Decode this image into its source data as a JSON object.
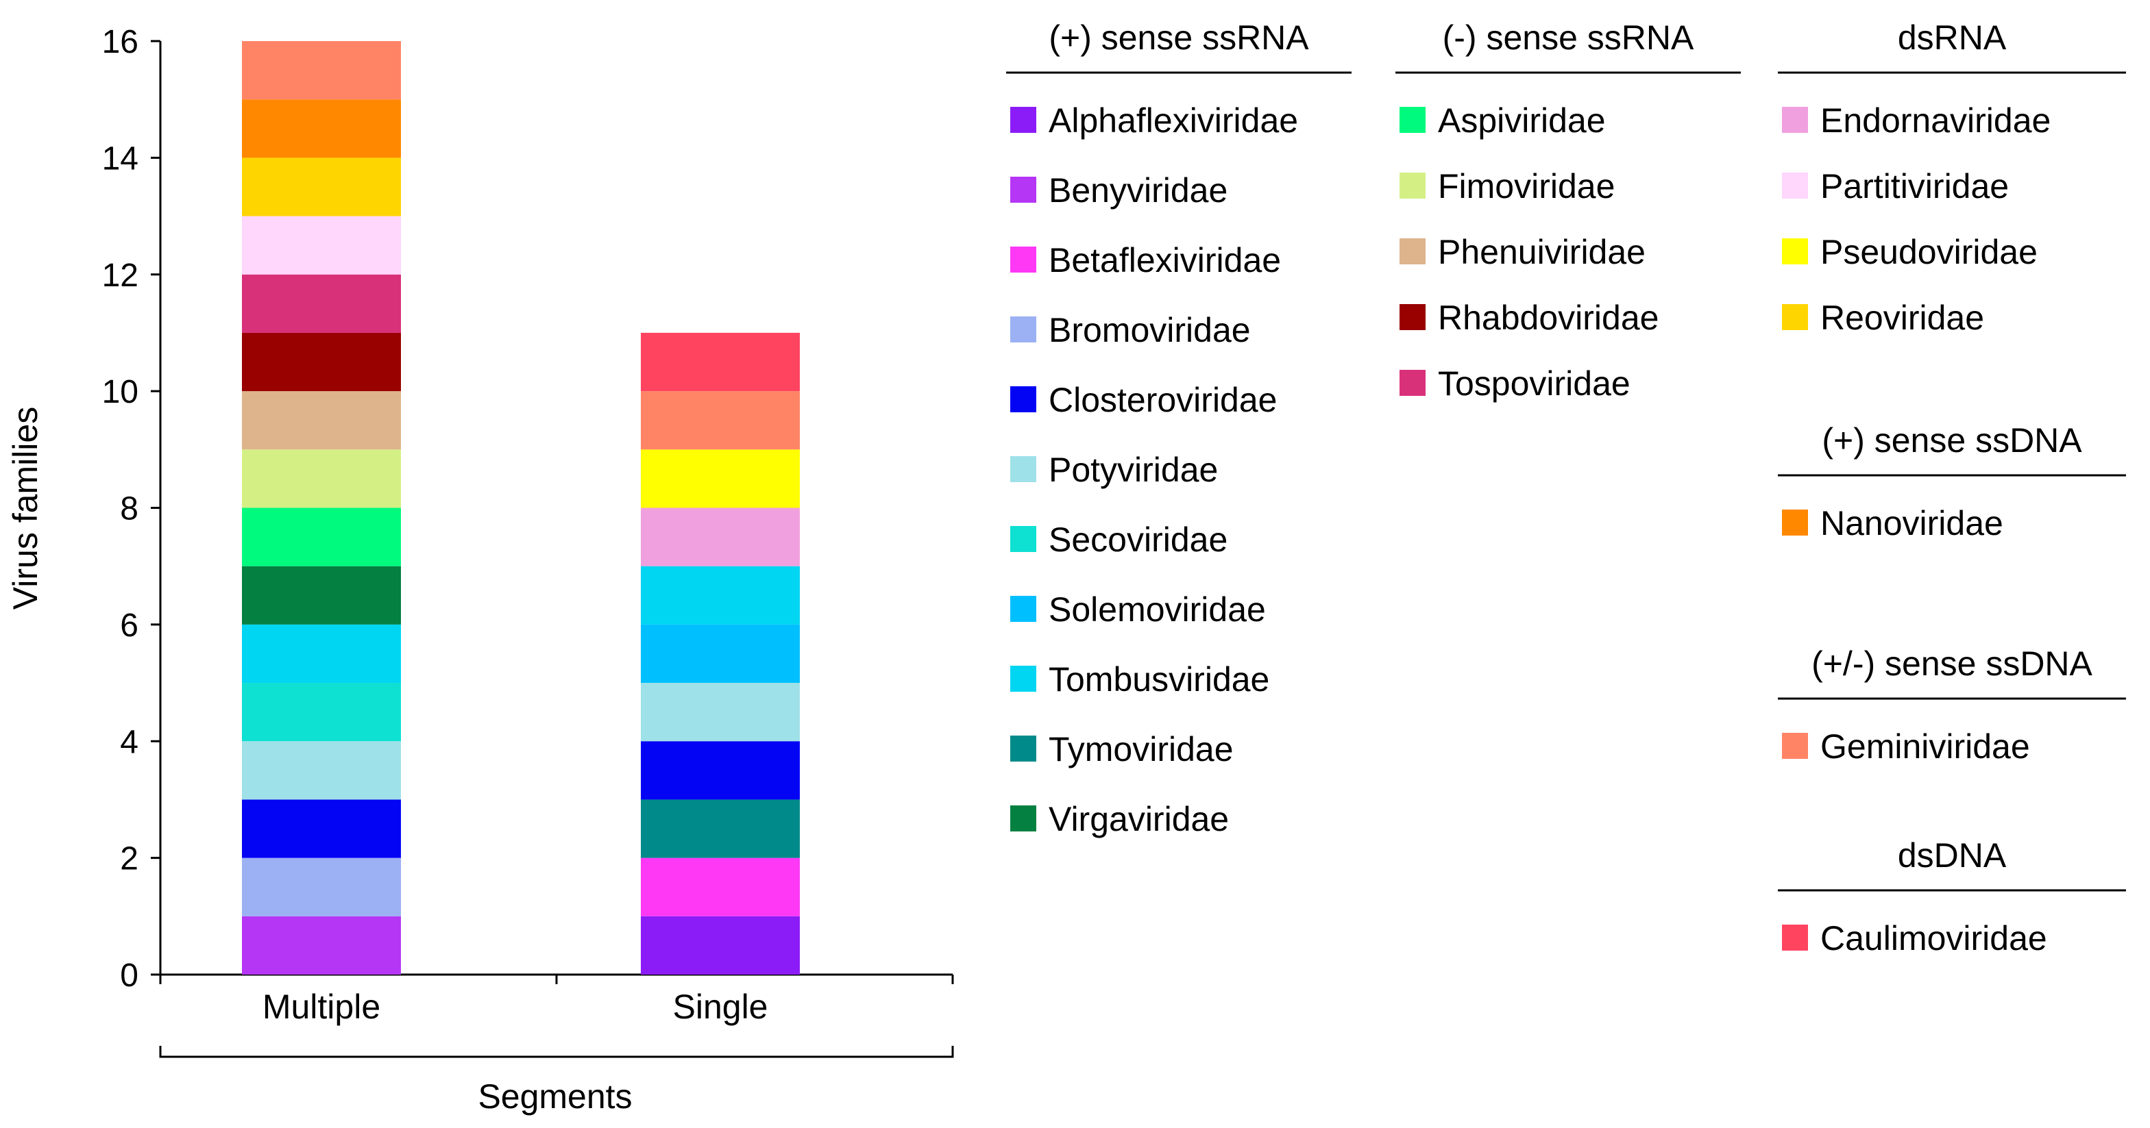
{
  "chart_data": {
    "type": "bar",
    "stacked": true,
    "ylabel": "Virus families",
    "xlabel": "Segments",
    "categories": [
      "Multiple",
      "Single"
    ],
    "ylim": [
      0,
      16
    ],
    "yticks": [
      0,
      2,
      4,
      6,
      8,
      10,
      12,
      14,
      16
    ],
    "grid": false,
    "stacks": [
      {
        "category": "Multiple",
        "total": 16,
        "segments": [
          "Benyviridae",
          "Bromoviridae",
          "Closteroviridae",
          "Potyviridae",
          "Secoviridae",
          "Tombusviridae",
          "Virgaviridae",
          "Aspiviridae",
          "Fimoviridae",
          "Phenuiviridae",
          "Rhabdoviridae",
          "Tospoviridae",
          "Partitiviridae",
          "Reoviridae",
          "Nanoviridae",
          "Geminiviridae"
        ]
      },
      {
        "category": "Single",
        "total": 11,
        "segments": [
          "Alphaflexiviridae",
          "Betaflexiviridae",
          "Tymoviridae",
          "Closteroviridae",
          "Potyviridae",
          "Solemoviridae",
          "Tombusviridae",
          "Endornaviridae",
          "Pseudoviridae",
          "Geminiviridae",
          "Caulimoviridae"
        ]
      }
    ],
    "legend_placement": "right",
    "legend_groups": [
      {
        "title": "(+) sense ssRNA",
        "items": [
          {
            "name": "Alphaflexiviridae",
            "color": "#8B1CF7"
          },
          {
            "name": "Benyviridae",
            "color": "#B536F4"
          },
          {
            "name": "Betaflexiviridae",
            "color": "#FF38F5"
          },
          {
            "name": "Bromoviridae",
            "color": "#9CB1F3"
          },
          {
            "name": "Closteroviridae",
            "color": "#0404F5"
          },
          {
            "name": "Potyviridae",
            "color": "#9FE1E8"
          },
          {
            "name": "Secoviridae",
            "color": "#0EE0D2"
          },
          {
            "name": "Solemoviridae",
            "color": "#00BFFF"
          },
          {
            "name": "Tombusviridae",
            "color": "#00D5F2"
          },
          {
            "name": "Tymoviridae",
            "color": "#008A8A"
          },
          {
            "name": "Virgaviridae",
            "color": "#048040"
          }
        ]
      },
      {
        "title": "(-) sense ssRNA",
        "items": [
          {
            "name": "Aspiviridae",
            "color": "#00FA7D"
          },
          {
            "name": "Fimoviridae",
            "color": "#D4F085"
          },
          {
            "name": "Phenuiviridae",
            "color": "#DDB48C"
          },
          {
            "name": "Rhabdoviridae",
            "color": "#990000"
          },
          {
            "name": "Tospoviridae",
            "color": "#D9307A"
          }
        ]
      },
      {
        "title": "dsRNA",
        "items": [
          {
            "name": "Endornaviridae",
            "color": "#F0A0DE"
          },
          {
            "name": "Partitiviridae",
            "color": "#FFD6FC"
          },
          {
            "name": "Pseudoviridae",
            "color": "#FFFF00"
          },
          {
            "name": "Reoviridae",
            "color": "#FFD500"
          }
        ]
      },
      {
        "title": "(+) sense ssDNA",
        "items": [
          {
            "name": "Nanoviridae",
            "color": "#FF8800"
          }
        ]
      },
      {
        "title": "(+/-) sense ssDNA",
        "items": [
          {
            "name": "Geminiviridae",
            "color": "#FF8466"
          }
        ]
      },
      {
        "title": "dsDNA",
        "items": [
          {
            "name": "Caulimoviridae",
            "color": "#FF4460"
          }
        ]
      }
    ]
  }
}
